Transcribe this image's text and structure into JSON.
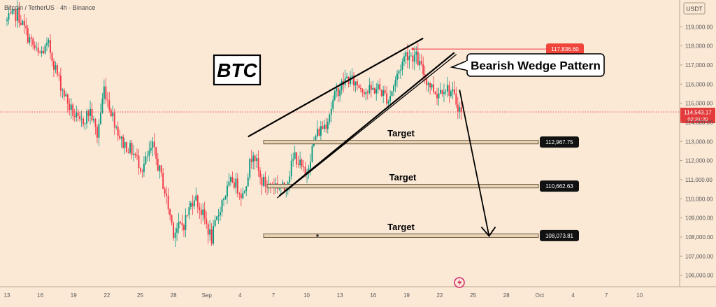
{
  "header": {
    "symbol": "Bitcoin / TetherUS · 4h · Binance",
    "currency_label": "USDT"
  },
  "badge": {
    "title": "BTC"
  },
  "callout": {
    "text": "Bearish Wedge Pattern"
  },
  "colors": {
    "background": "#fbe9d6",
    "up_candle": "#089981",
    "down_candle": "#f23645",
    "wedge_line": "#000000",
    "target_fill": "#e8d2b4",
    "target_border": "#5c4a33",
    "resistance_line": "#f23645",
    "arrow": "#000000"
  },
  "chart_data": {
    "type": "candlestick",
    "ylim": [
      105400,
      120400
    ],
    "y_ticks": [
      "106,000.00",
      "107,000.00",
      "108,000.00",
      "109,000.00",
      "110,000.00",
      "111,000.00",
      "112,000.00",
      "113,000.00",
      "114,000.00",
      "115,000.00",
      "116,000.00",
      "117,000.00",
      "118,000.00",
      "119,000.00"
    ],
    "x_ticks": [
      "13",
      "16",
      "19",
      "22",
      "25",
      "28",
      "Sep",
      "4",
      "7",
      "10",
      "13",
      "16",
      "19",
      "22",
      "25",
      "28",
      "Oct",
      "4",
      "7",
      "10"
    ],
    "close_path": [
      {
        "i": 0,
        "p": 119300
      },
      {
        "i": 6,
        "p": 119700
      },
      {
        "i": 12,
        "p": 118500
      },
      {
        "i": 18,
        "p": 117500
      },
      {
        "i": 24,
        "p": 118000
      },
      {
        "i": 30,
        "p": 116200
      },
      {
        "i": 36,
        "p": 114800
      },
      {
        "i": 42,
        "p": 113900
      },
      {
        "i": 48,
        "p": 114600
      },
      {
        "i": 52,
        "p": 113300
      },
      {
        "i": 56,
        "p": 115800
      },
      {
        "i": 60,
        "p": 114600
      },
      {
        "i": 66,
        "p": 113000
      },
      {
        "i": 72,
        "p": 112500
      },
      {
        "i": 78,
        "p": 111600
      },
      {
        "i": 84,
        "p": 112700
      },
      {
        "i": 90,
        "p": 110800
      },
      {
        "i": 96,
        "p": 108300
      },
      {
        "i": 102,
        "p": 108700
      },
      {
        "i": 108,
        "p": 110200
      },
      {
        "i": 114,
        "p": 108900
      },
      {
        "i": 118,
        "p": 107900
      },
      {
        "i": 124,
        "p": 109900
      },
      {
        "i": 130,
        "p": 111000
      },
      {
        "i": 136,
        "p": 110200
      },
      {
        "i": 142,
        "p": 112600
      },
      {
        "i": 146,
        "p": 111000
      },
      {
        "i": 150,
        "p": 110700
      },
      {
        "i": 154,
        "p": 110800
      },
      {
        "i": 160,
        "p": 110500
      },
      {
        "i": 166,
        "p": 112300
      },
      {
        "i": 172,
        "p": 111200
      },
      {
        "i": 178,
        "p": 113300
      },
      {
        "i": 184,
        "p": 114000
      },
      {
        "i": 190,
        "p": 115600
      },
      {
        "i": 196,
        "p": 116300
      },
      {
        "i": 202,
        "p": 116000
      },
      {
        "i": 208,
        "p": 115600
      },
      {
        "i": 214,
        "p": 115800
      },
      {
        "i": 220,
        "p": 115200
      },
      {
        "i": 226,
        "p": 116700
      },
      {
        "i": 230,
        "p": 117600
      },
      {
        "i": 236,
        "p": 117400
      },
      {
        "i": 242,
        "p": 116200
      },
      {
        "i": 248,
        "p": 115500
      },
      {
        "i": 252,
        "p": 115900
      },
      {
        "i": 256,
        "p": 115600
      },
      {
        "i": 262,
        "p": 114543.17
      }
    ],
    "wedge": {
      "upper": [
        {
          "i": 139,
          "p": 113250
        },
        {
          "i": 240,
          "p": 118400
        }
      ],
      "lower": [
        {
          "i": 157,
          "p": 110150
        },
        {
          "i": 258,
          "p": 117650
        }
      ]
    },
    "resistance": {
      "from_i": 234,
      "price": 117836.6,
      "label": "117,836.60"
    },
    "targets": [
      {
        "text": "Target",
        "price": 112967.75,
        "label": "112,967.75",
        "from_i": 148
      },
      {
        "text": "Target",
        "price": 110662.63,
        "label": "110,662.63",
        "from_i": 150
      },
      {
        "text": "Target",
        "price": 108073.81,
        "label": "108,073.81",
        "from_i": 148
      }
    ],
    "arrow": {
      "from": {
        "i": 261,
        "p": 115700
      },
      "to": {
        "i": 278,
        "p": 108050
      }
    },
    "current_price": {
      "price": 114543.17,
      "label": "114,543.17",
      "countdown": "02:31:20"
    }
  }
}
